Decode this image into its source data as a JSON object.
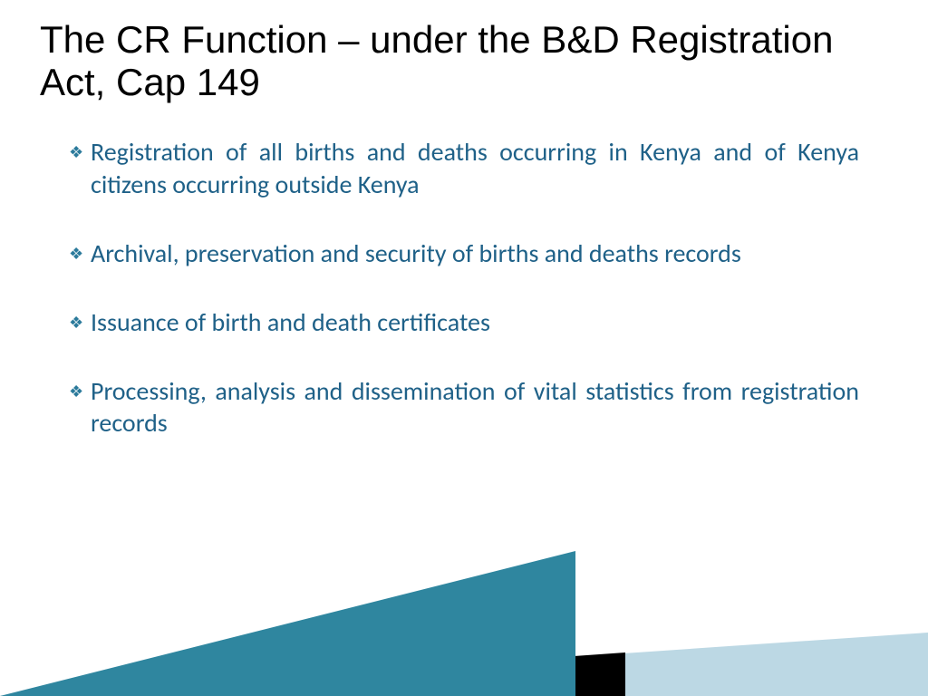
{
  "slide": {
    "title": "The CR Function – under the B&D Registration Act, Cap 149",
    "bullets": [
      "Registration of all births and deaths occurring in Kenya and of Kenya citizens occurring outside Kenya",
      "Archival, preservation and security of births and deaths records",
      "Issuance of birth and death certificates",
      "Processing, analysis and dissemination of vital statistics from registration records"
    ],
    "colors": {
      "title": "#000000",
      "body_text": "#1f6188",
      "bullet_marker": "#2b7a9b",
      "background": "#ffffff",
      "footer_light": "#bcd8e4",
      "footer_black": "#000000",
      "footer_teal": "#2f869f"
    },
    "typography": {
      "title_fontsize": 42,
      "body_fontsize": 28,
      "title_weight": "semibold",
      "body_weight": "normal",
      "font_family": "Calibri / Segoe UI"
    },
    "bullet_glyph": "❖"
  }
}
